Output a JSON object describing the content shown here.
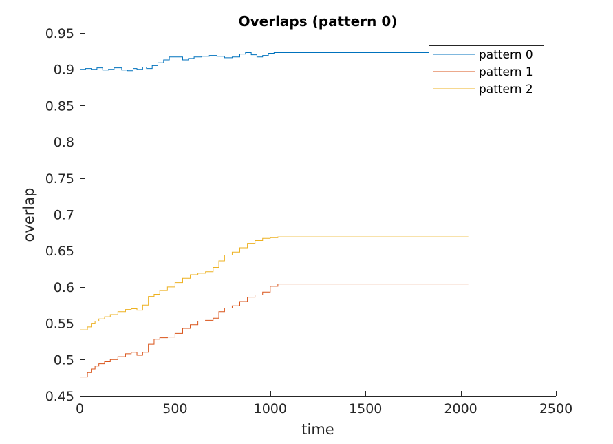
{
  "chart_data": {
    "type": "line",
    "title": "Overlaps (pattern 0)",
    "xlabel": "time",
    "ylabel": "overlap",
    "xlim": [
      0,
      2500
    ],
    "ylim": [
      0.45,
      0.95
    ],
    "xticks": [
      0,
      500,
      1000,
      1500,
      2000,
      2500
    ],
    "xtick_labels": [
      "0",
      "500",
      "1000",
      "1500",
      "2000",
      "2500"
    ],
    "yticks": [
      0.45,
      0.5,
      0.55,
      0.6,
      0.65,
      0.7,
      0.75,
      0.8,
      0.85,
      0.9,
      0.95
    ],
    "ytick_labels": [
      "0.45",
      "0.5",
      "0.55",
      "0.6",
      "0.65",
      "0.7",
      "0.75",
      "0.8",
      "0.85",
      "0.9",
      "0.95"
    ],
    "grid": false,
    "legend_position": "top-right",
    "series": [
      {
        "name": "pattern 0",
        "color": "#0072BD",
        "step": true,
        "x": [
          0,
          30,
          60,
          90,
          120,
          150,
          180,
          220,
          250,
          280,
          300,
          330,
          350,
          380,
          410,
          440,
          470,
          500,
          540,
          570,
          600,
          640,
          680,
          720,
          760,
          800,
          840,
          870,
          900,
          930,
          960,
          990,
          1020,
          1100,
          1200,
          2040
        ],
        "y": [
          0.9,
          0.901,
          0.9,
          0.902,
          0.899,
          0.9,
          0.902,
          0.899,
          0.898,
          0.901,
          0.9,
          0.903,
          0.901,
          0.905,
          0.909,
          0.913,
          0.917,
          0.917,
          0.913,
          0.915,
          0.917,
          0.918,
          0.919,
          0.918,
          0.916,
          0.917,
          0.921,
          0.923,
          0.92,
          0.917,
          0.919,
          0.922,
          0.923,
          0.923,
          0.923,
          0.923
        ]
      },
      {
        "name": "pattern 1",
        "color": "#D95319",
        "step": true,
        "x": [
          0,
          20,
          40,
          60,
          80,
          100,
          130,
          160,
          200,
          240,
          270,
          300,
          330,
          360,
          390,
          420,
          460,
          500,
          540,
          580,
          620,
          660,
          700,
          730,
          760,
          800,
          840,
          880,
          920,
          960,
          1000,
          1040,
          2040
        ],
        "y": [
          0.476,
          0.476,
          0.482,
          0.487,
          0.491,
          0.494,
          0.497,
          0.5,
          0.504,
          0.508,
          0.51,
          0.506,
          0.51,
          0.521,
          0.528,
          0.53,
          0.531,
          0.536,
          0.543,
          0.548,
          0.553,
          0.554,
          0.557,
          0.566,
          0.571,
          0.574,
          0.58,
          0.586,
          0.589,
          0.593,
          0.601,
          0.604,
          0.604
        ]
      },
      {
        "name": "pattern 2",
        "color": "#EDB120",
        "step": true,
        "x": [
          0,
          20,
          40,
          60,
          80,
          100,
          130,
          160,
          200,
          240,
          270,
          300,
          330,
          360,
          390,
          420,
          460,
          500,
          540,
          580,
          620,
          660,
          700,
          730,
          760,
          800,
          840,
          880,
          920,
          960,
          1000,
          1040,
          2040
        ],
        "y": [
          0.541,
          0.541,
          0.545,
          0.55,
          0.553,
          0.556,
          0.559,
          0.562,
          0.566,
          0.569,
          0.57,
          0.568,
          0.575,
          0.587,
          0.59,
          0.595,
          0.6,
          0.606,
          0.612,
          0.617,
          0.619,
          0.621,
          0.627,
          0.636,
          0.644,
          0.648,
          0.654,
          0.66,
          0.664,
          0.667,
          0.668,
          0.669,
          0.669
        ]
      }
    ]
  }
}
